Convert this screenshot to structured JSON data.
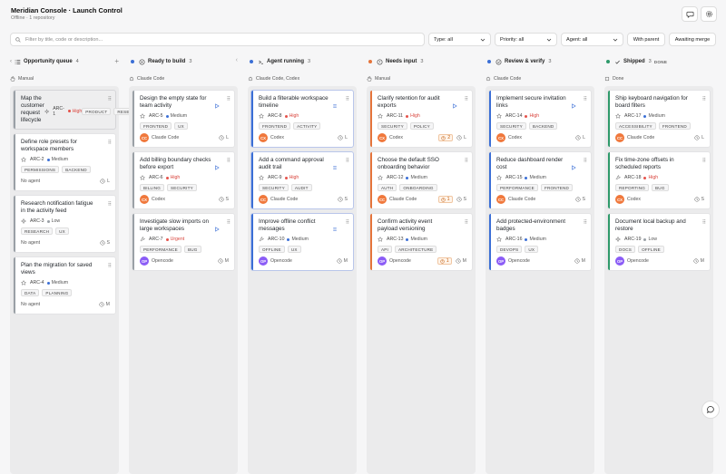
{
  "app": {
    "title": "Meridian Console · Launch Control",
    "subtitle": "Offline · 1 repository"
  },
  "filters": {
    "search_placeholder": "Filter by title, code or description...",
    "type": "Type: all",
    "priority": "Priority: all",
    "agent": "Agent: all",
    "with_parent": "With parent",
    "awaiting_merge": "Awaiting merge"
  },
  "colors": {
    "high": "#e5534b",
    "medium": "#3b6fd6",
    "low": "#9aa0a6",
    "urgent": "#e5534b",
    "claude": "#f0783c",
    "codex": "#f0783c",
    "opencode": "#8b5cf6"
  },
  "columns": [
    {
      "title": "Opportunity queue",
      "count": "4",
      "icon": "list-icon",
      "dot": "",
      "agent": "Manual",
      "bar": "#9aa0a6",
      "cards": [
        {
          "title": "Map the customer request lifecycle",
          "id": "ARC-1",
          "priority": "High",
          "type": "sparkle",
          "tags": [
            "PRODUCT",
            "RESEARCH"
          ],
          "agent": "No agent",
          "avatar": "",
          "size": "M",
          "selected": true
        },
        {
          "title": "Define role presets for workspace members",
          "id": "ARC-2",
          "priority": "Medium",
          "type": "star",
          "tags": [
            "PERMISSIONS",
            "BACKEND"
          ],
          "agent": "No agent",
          "avatar": "",
          "size": "L"
        },
        {
          "title": "Research notification fatigue in the activity feed",
          "id": "ARC-3",
          "priority": "Low",
          "type": "sparkle",
          "tags": [
            "RESEARCH",
            "UX"
          ],
          "agent": "No agent",
          "avatar": "",
          "size": "S"
        },
        {
          "title": "Plan the migration for saved views",
          "id": "ARC-4",
          "priority": "Medium",
          "type": "star",
          "tags": [
            "DATA",
            "PLANNING"
          ],
          "agent": "No agent",
          "avatar": "",
          "size": "M"
        }
      ]
    },
    {
      "title": "Ready to build",
      "count": "3",
      "dot": "#3b6fd6",
      "agent": "Claude Code",
      "bar": "#9aa0a6",
      "cards": [
        {
          "title": "Design the empty state for team activity",
          "id": "ARC-5",
          "priority": "Medium",
          "type": "star",
          "tags": [
            "FRONTEND",
            "UX"
          ],
          "agent": "Claude Code",
          "avatar": "CC",
          "size": "L",
          "play": true
        },
        {
          "title": "Add billing boundary checks before export",
          "id": "ARC-6",
          "priority": "High",
          "type": "star",
          "tags": [
            "BILLING",
            "SECURITY"
          ],
          "agent": "Codex",
          "avatar": "CX",
          "size": "S",
          "play": true
        },
        {
          "title": "Investigate slow imports on large workspaces",
          "id": "ARC-7",
          "priority": "Urgent",
          "type": "tool",
          "tags": [
            "PERFORMANCE",
            "BUG"
          ],
          "agent": "Opencode",
          "avatar": "OP",
          "size": "M",
          "play": true
        }
      ]
    },
    {
      "title": "Agent running",
      "count": "3",
      "dot": "#3b6fd6",
      "agent": "Claude Code, Codex",
      "bar": "#3b6fd6",
      "cards": [
        {
          "title": "Build a filterable workspace timeline",
          "id": "ARC-8",
          "priority": "High",
          "type": "star",
          "tags": [
            "FRONTEND",
            "ACTIVITY"
          ],
          "agent": "Codex",
          "avatar": "CX",
          "size": "L",
          "running": true
        },
        {
          "title": "Add a command approval audit trail",
          "id": "ARC-9",
          "priority": "High",
          "type": "star",
          "tags": [
            "SECURITY",
            "AUDIT"
          ],
          "agent": "Claude Code",
          "avatar": "CC",
          "size": "S",
          "running": true
        },
        {
          "title": "Improve offline conflict messages",
          "id": "ARC-10",
          "priority": "Medium",
          "type": "tool",
          "tags": [
            "OFFLINE",
            "UX"
          ],
          "agent": "Opencode",
          "avatar": "OP",
          "size": "M",
          "running": true
        }
      ]
    },
    {
      "title": "Needs input",
      "count": "3",
      "dot": "#e5743b",
      "agent": "Manual",
      "bar": "#e5743b",
      "cards": [
        {
          "title": "Clarify retention for audit exports",
          "id": "ARC-11",
          "priority": "High",
          "type": "star",
          "tags": [
            "SECURITY",
            "POLICY"
          ],
          "agent": "Codex",
          "avatar": "CX",
          "size": "L",
          "questions": "2",
          "play": true
        },
        {
          "title": "Choose the default SSO onboarding behavior",
          "id": "ARC-12",
          "priority": "Medium",
          "type": "star",
          "tags": [
            "AUTH",
            "ONBOARDING"
          ],
          "agent": "Claude Code",
          "avatar": "CC",
          "size": "S",
          "questions": "1"
        },
        {
          "title": "Confirm activity event payload versioning",
          "id": "ARC-13",
          "priority": "Medium",
          "type": "star",
          "tags": [
            "API",
            "ARCHITECTURE"
          ],
          "agent": "Opencode",
          "avatar": "OP",
          "size": "M",
          "questions": "1"
        }
      ]
    },
    {
      "title": "Review & verify",
      "count": "3",
      "dot": "#3b6fd6",
      "agent": "Claude Code",
      "bar": "#3b6fd6",
      "cards": [
        {
          "title": "Implement secure invitation links",
          "id": "ARC-14",
          "priority": "High",
          "type": "star",
          "tags": [
            "SECURITY",
            "BACKEND"
          ],
          "agent": "Codex",
          "avatar": "CX",
          "size": "L",
          "play": true
        },
        {
          "title": "Reduce dashboard render cost",
          "id": "ARC-15",
          "priority": "Medium",
          "type": "star",
          "tags": [
            "PERFORMANCE",
            "FRONTEND"
          ],
          "agent": "Claude Code",
          "avatar": "CC",
          "size": "S",
          "play": true
        },
        {
          "title": "Add protected-environment badges",
          "id": "ARC-16",
          "priority": "Medium",
          "type": "star",
          "tags": [
            "DEVOPS",
            "UX"
          ],
          "agent": "Opencode",
          "avatar": "OP",
          "size": "M"
        }
      ]
    },
    {
      "title": "Shipped",
      "count": "3",
      "done": "DONE",
      "dot": "#2f9a6b",
      "icon": "check-icon",
      "agent": "Done",
      "bar": "#2f9a6b",
      "cards": [
        {
          "title": "Ship keyboard navigation for board filters",
          "id": "ARC-17",
          "priority": "Medium",
          "type": "star",
          "tags": [
            "ACCESSIBILITY",
            "FRONTEND"
          ],
          "agent": "Claude Code",
          "avatar": "CC",
          "size": "L"
        },
        {
          "title": "Fix time-zone offsets in scheduled reports",
          "id": "ARC-18",
          "priority": "High",
          "type": "tool",
          "tags": [
            "REPORTING",
            "BUG"
          ],
          "agent": "Codex",
          "avatar": "CX",
          "size": "S"
        },
        {
          "title": "Document local backup and restore",
          "id": "ARC-19",
          "priority": "Low",
          "type": "sparkle",
          "tags": [
            "DOCS",
            "OFFLINE"
          ],
          "agent": "Opencode",
          "avatar": "OP",
          "size": "M"
        }
      ]
    }
  ]
}
